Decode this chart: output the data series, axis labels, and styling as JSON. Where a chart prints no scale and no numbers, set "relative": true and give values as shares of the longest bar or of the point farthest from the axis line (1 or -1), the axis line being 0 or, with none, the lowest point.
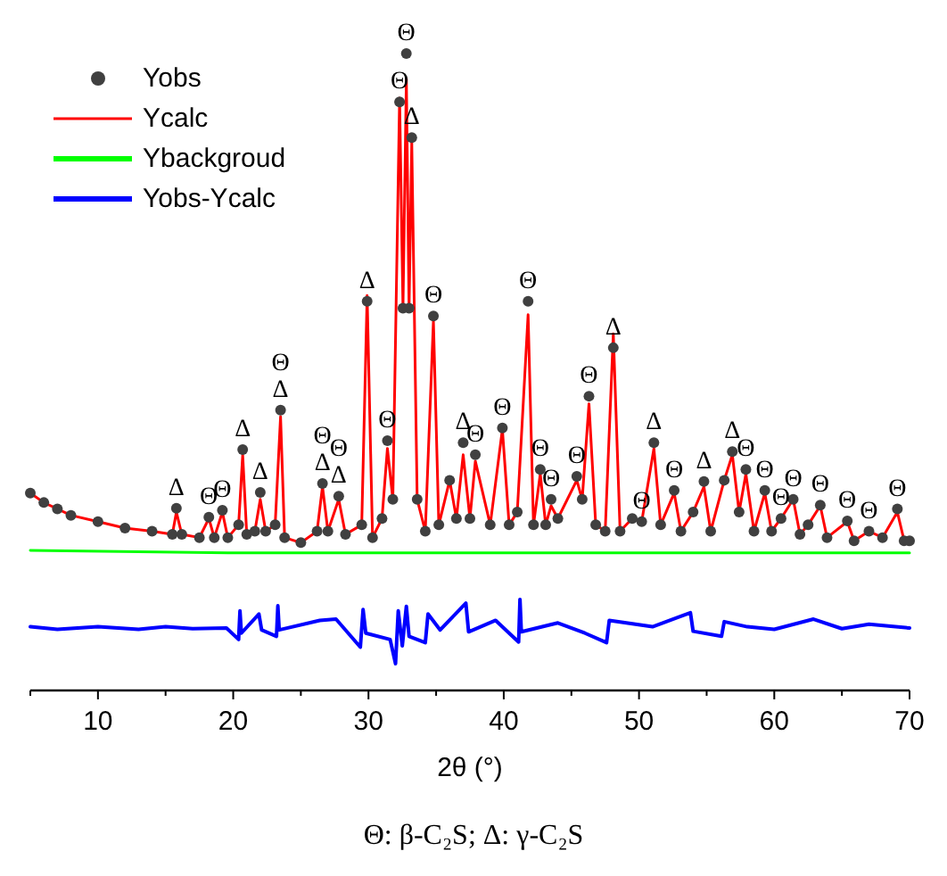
{
  "chart_data": {
    "type": "line",
    "relative": true,
    "xlabel": "2θ (°)",
    "xlim": [
      5,
      70
    ],
    "xticks": [
      {
        "value": 5,
        "label": null
      },
      10,
      {
        "value": 15,
        "label": null
      },
      20,
      {
        "value": 25,
        "label": null
      },
      30,
      {
        "value": 35,
        "label": null
      },
      40,
      {
        "value": 45,
        "label": null
      },
      50,
      {
        "value": 55,
        "label": null
      },
      60,
      {
        "value": 65,
        "label": null
      },
      70
    ],
    "legend": "top left",
    "grid": false,
    "series": [
      {
        "name": "Yobs",
        "type": "scatter",
        "marker": "circle",
        "color": "#404040",
        "x": [
          5,
          6,
          7,
          8,
          10,
          12,
          14,
          15.5,
          15.8,
          16.2,
          17.5,
          18.2,
          18.6,
          19.2,
          19.6,
          20.4,
          20.7,
          21,
          21.6,
          22,
          22.4,
          23.1,
          23.5,
          23.8,
          25,
          26.2,
          26.6,
          27,
          27.8,
          28.3,
          29.5,
          29.9,
          30.3,
          31,
          31.4,
          31.8,
          32.3,
          32.55,
          32.8,
          33,
          33.2,
          33.6,
          34.2,
          34.8,
          35.2,
          36,
          36.5,
          37,
          37.5,
          37.9,
          39,
          39.9,
          40.4,
          41,
          41.8,
          42.2,
          42.7,
          43.1,
          43.5,
          44,
          45.4,
          45.8,
          46.3,
          46.8,
          47.5,
          48.1,
          48.6,
          49.5,
          50.2,
          51.1,
          51.6,
          52.6,
          53.1,
          54,
          54.8,
          55.3,
          56.3,
          56.9,
          57.4,
          57.9,
          58.5,
          59.3,
          59.8,
          60.5,
          61.4,
          61.9,
          62.5,
          63.4,
          63.9,
          65.4,
          65.9,
          67,
          68,
          69.1,
          69.6,
          70
        ],
        "values": [
          0.31,
          0.295,
          0.285,
          0.275,
          0.265,
          0.255,
          0.25,
          0.245,
          0.286,
          0.245,
          0.24,
          0.272,
          0.24,
          0.283,
          0.24,
          0.26,
          0.378,
          0.245,
          0.25,
          0.311,
          0.25,
          0.26,
          0.44,
          0.24,
          0.232,
          0.25,
          0.325,
          0.25,
          0.305,
          0.245,
          0.26,
          0.611,
          0.24,
          0.27,
          0.392,
          0.3,
          0.924,
          0.6,
          1,
          0.6,
          0.868,
          0.3,
          0.25,
          0.588,
          0.26,
          0.33,
          0.27,
          0.389,
          0.27,
          0.37,
          0.26,
          0.412,
          0.26,
          0.28,
          0.611,
          0.26,
          0.347,
          0.26,
          0.3,
          0.27,
          0.336,
          0.3,
          0.462,
          0.26,
          0.25,
          0.538,
          0.25,
          0.27,
          0.265,
          0.389,
          0.26,
          0.314,
          0.25,
          0.28,
          0.328,
          0.25,
          0.33,
          0.375,
          0.28,
          0.347,
          0.25,
          0.314,
          0.25,
          0.27,
          0.3,
          0.245,
          0.26,
          0.291,
          0.24,
          0.266,
          0.235,
          0.25,
          0.24,
          0.285,
          0.235,
          0.235
        ]
      },
      {
        "name": "Ycalc",
        "type": "line",
        "color": "#ff0000",
        "x": [
          5,
          6,
          7,
          8,
          10,
          12,
          14,
          15.5,
          15.8,
          16.2,
          17.5,
          18.2,
          18.6,
          19.2,
          19.6,
          20.4,
          20.7,
          21,
          21.6,
          22,
          22.4,
          23.1,
          23.5,
          23.8,
          25,
          26.2,
          26.6,
          27,
          27.8,
          28.3,
          29.5,
          29.9,
          30.3,
          31,
          31.4,
          31.8,
          32.3,
          32.55,
          32.8,
          33,
          33.2,
          33.6,
          34.2,
          34.8,
          35.2,
          36,
          36.5,
          37,
          37.5,
          37.9,
          39,
          39.9,
          40.4,
          41,
          41.8,
          42.2,
          42.7,
          43.1,
          43.5,
          44,
          45.4,
          45.8,
          46.3,
          46.8,
          47.5,
          48.1,
          48.6,
          49.5,
          50.2,
          51.1,
          51.6,
          52.6,
          53.1,
          54,
          54.8,
          55.3,
          56.3,
          56.9,
          57.4,
          57.9,
          58.5,
          59.3,
          59.8,
          60.5,
          61.4,
          61.9,
          62.5,
          63.4,
          63.9,
          65.4,
          65.9,
          67,
          68,
          69.1,
          69.6,
          70
        ],
        "values": [
          0.31,
          0.295,
          0.285,
          0.275,
          0.265,
          0.255,
          0.25,
          0.245,
          0.28,
          0.245,
          0.24,
          0.27,
          0.24,
          0.28,
          0.24,
          0.26,
          0.37,
          0.245,
          0.25,
          0.3,
          0.25,
          0.26,
          0.43,
          0.24,
          0.232,
          0.25,
          0.32,
          0.25,
          0.3,
          0.245,
          0.26,
          0.62,
          0.24,
          0.27,
          0.38,
          0.3,
          0.93,
          0.6,
          0.96,
          0.6,
          0.86,
          0.3,
          0.25,
          0.58,
          0.26,
          0.33,
          0.27,
          0.37,
          0.27,
          0.36,
          0.26,
          0.41,
          0.26,
          0.28,
          0.59,
          0.26,
          0.34,
          0.26,
          0.29,
          0.27,
          0.33,
          0.3,
          0.45,
          0.26,
          0.25,
          0.56,
          0.25,
          0.27,
          0.265,
          0.38,
          0.26,
          0.31,
          0.25,
          0.28,
          0.32,
          0.25,
          0.33,
          0.37,
          0.28,
          0.34,
          0.25,
          0.31,
          0.25,
          0.27,
          0.3,
          0.245,
          0.26,
          0.29,
          0.24,
          0.265,
          0.235,
          0.25,
          0.24,
          0.28,
          0.235,
          0.235
        ]
      },
      {
        "name": "Ybackgroud",
        "type": "line",
        "color": "#00ff00",
        "x": [
          5,
          20,
          40,
          70
        ],
        "values": [
          0.22,
          0.216,
          0.216,
          0.216
        ]
      },
      {
        "name": "Yobs-Ycalc",
        "type": "line",
        "color": "#0000ff",
        "x": [
          5,
          7,
          10,
          13,
          15,
          17,
          19.5,
          20.4,
          20.5,
          20.6,
          21.9,
          22.1,
          23.2,
          23.3,
          23.4,
          26.4,
          27.6,
          29.4,
          29.6,
          29.8,
          31.6,
          32,
          32.2,
          32.5,
          32.8,
          33,
          34.2,
          34.4,
          35.3,
          37.2,
          37.4,
          39.4,
          41.1,
          41.2,
          41.3,
          44,
          46,
          47.6,
          47.8,
          51,
          53.8,
          54,
          56.1,
          56.3,
          58,
          60,
          62.9,
          65,
          67,
          70
        ],
        "values": [
          0.1,
          0.096,
          0.1,
          0.096,
          0.1,
          0.097,
          0.098,
          0.08,
          0.125,
          0.09,
          0.12,
          0.095,
          0.085,
          0.133,
          0.095,
          0.11,
          0.112,
          0.068,
          0.127,
          0.09,
          0.08,
          0.042,
          0.125,
          0.07,
          0.132,
          0.085,
          0.075,
          0.12,
          0.095,
          0.137,
          0.092,
          0.11,
          0.076,
          0.143,
          0.092,
          0.106,
          0.09,
          0.075,
          0.11,
          0.1,
          0.122,
          0.093,
          0.085,
          0.108,
          0.1,
          0.096,
          0.112,
          0.097,
          0.104,
          0.098
        ]
      }
    ],
    "annotations": [
      {
        "text": "Δ",
        "x": 15.8,
        "y": 0.286
      },
      {
        "text": "Θ",
        "x": 18.2,
        "y": 0.272
      },
      {
        "text": "Θ",
        "x": 19.2,
        "y": 0.283
      },
      {
        "text": "Δ",
        "x": 20.7,
        "y": 0.378
      },
      {
        "text": "Δ",
        "x": 22,
        "y": 0.311
      },
      {
        "text": "Δ",
        "x": 23.5,
        "y": 0.44
      },
      {
        "text": "Θ",
        "x": 23.5,
        "y": 0.44
      },
      {
        "text": "Δ",
        "x": 26.6,
        "y": 0.325
      },
      {
        "text": "Θ",
        "x": 26.6,
        "y": 0.325
      },
      {
        "text": "Δ",
        "x": 27.8,
        "y": 0.305
      },
      {
        "text": "Θ",
        "x": 27.8,
        "y": 0.305
      },
      {
        "text": "Δ",
        "x": 29.9,
        "y": 0.611
      },
      {
        "text": "Θ",
        "x": 31.4,
        "y": 0.392
      },
      {
        "text": "Θ",
        "x": 32.3,
        "y": 0.924
      },
      {
        "text": "Θ",
        "x": 32.8,
        "y": 1
      },
      {
        "text": "Δ",
        "x": 33.2,
        "y": 0.868
      },
      {
        "text": "Θ",
        "x": 34.8,
        "y": 0.588
      },
      {
        "text": "Δ",
        "x": 37,
        "y": 0.389
      },
      {
        "text": "Θ",
        "x": 37.9,
        "y": 0.37
      },
      {
        "text": "Θ",
        "x": 39.9,
        "y": 0.412
      },
      {
        "text": "Θ",
        "x": 41.8,
        "y": 0.611
      },
      {
        "text": "Θ",
        "x": 42.7,
        "y": 0.347
      },
      {
        "text": "Θ",
        "x": 43.5,
        "y": 0.3
      },
      {
        "text": "Θ",
        "x": 45.4,
        "y": 0.336
      },
      {
        "text": "Θ",
        "x": 46.3,
        "y": 0.462
      },
      {
        "text": "Δ",
        "x": 48.1,
        "y": 0.538
      },
      {
        "text": "Θ",
        "x": 50.2,
        "y": 0.265
      },
      {
        "text": "Δ",
        "x": 51.1,
        "y": 0.389
      },
      {
        "text": "Θ",
        "x": 52.6,
        "y": 0.314
      },
      {
        "text": "Δ",
        "x": 54.8,
        "y": 0.328
      },
      {
        "text": "Δ",
        "x": 56.9,
        "y": 0.375
      },
      {
        "text": "Θ",
        "x": 57.9,
        "y": 0.347
      },
      {
        "text": "Θ",
        "x": 59.3,
        "y": 0.314
      },
      {
        "text": "Θ",
        "x": 60.5,
        "y": 0.27
      },
      {
        "text": "Θ",
        "x": 61.4,
        "y": 0.3
      },
      {
        "text": "Θ",
        "x": 63.4,
        "y": 0.291
      },
      {
        "text": "Θ",
        "x": 65.4,
        "y": 0.266
      },
      {
        "text": "Θ",
        "x": 67,
        "y": 0.25
      },
      {
        "text": "Θ",
        "x": 69.1,
        "y": 0.285
      },
      "Θ: β-C₂S; Δ: γ-C₂S"
    ]
  }
}
